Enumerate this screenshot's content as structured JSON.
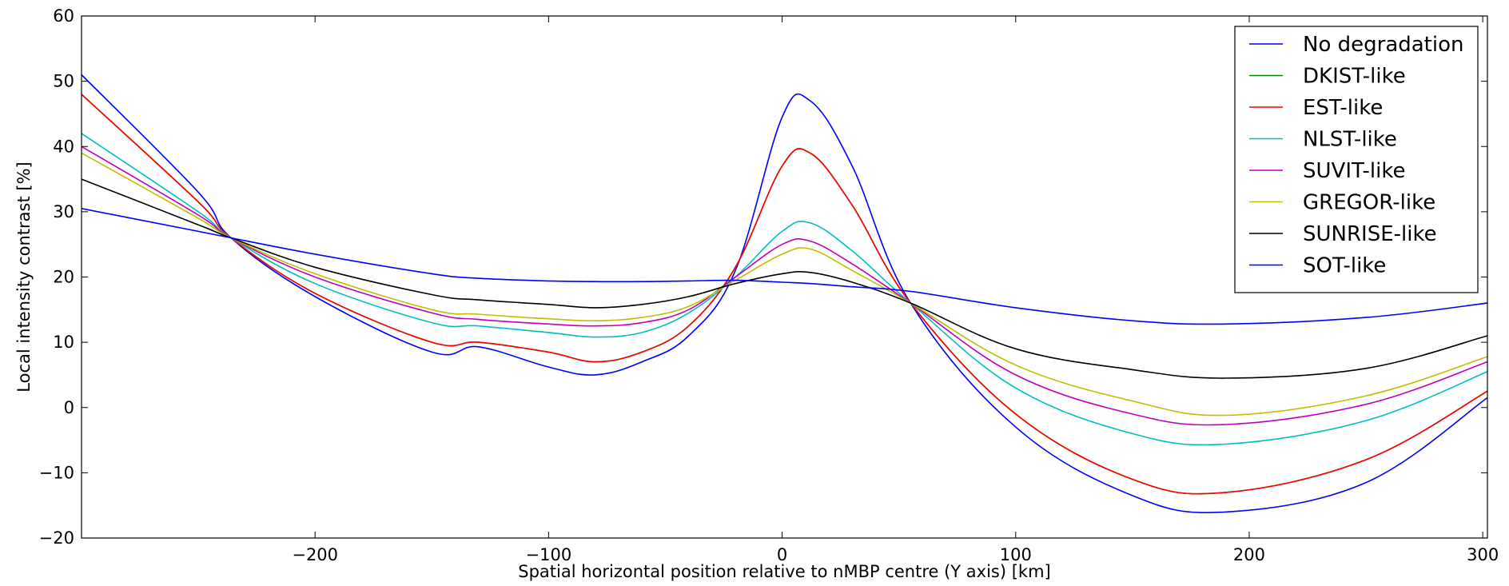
{
  "chart_data": {
    "type": "line",
    "title": "",
    "xlabel": "Spatial horizontal position relative to nMBP centre (Y axis) [km]",
    "ylabel": "Local intensity contrast [%]",
    "xlim": [
      -300,
      302
    ],
    "ylim": [
      -20,
      60
    ],
    "xticks": [
      -200,
      -100,
      0,
      100,
      200,
      300
    ],
    "xtick_labels": [
      "−200",
      "−100",
      "0",
      "100",
      "200",
      "300"
    ],
    "yticks": [
      -20,
      -10,
      0,
      10,
      20,
      30,
      40,
      50,
      60
    ],
    "ytick_labels": [
      "−20",
      "−10",
      "0",
      "10",
      "20",
      "30",
      "40",
      "50",
      "60"
    ],
    "legend_position": "top-right",
    "x": [
      -300,
      -250,
      -236,
      -200,
      -150,
      -130,
      -100,
      -80,
      -60,
      -40,
      -20,
      0,
      12,
      30,
      55,
      100,
      150,
      190,
      250,
      302
    ],
    "series": [
      {
        "name": "No degradation",
        "color": "#0000ff",
        "values": [
          51,
          33,
          26,
          17,
          8.5,
          9.3,
          6.2,
          5.0,
          7.0,
          11,
          21,
          44.5,
          47,
          37,
          16,
          -3,
          -13.5,
          -16,
          -11.5,
          1.5
        ]
      },
      {
        "name": "DKIST-like",
        "color": "#008000",
        "values": [
          48,
          31.5,
          26,
          17.5,
          10,
          10,
          8.5,
          7.0,
          8.5,
          12.5,
          21.5,
          37,
          39,
          31,
          16,
          -1,
          -11,
          -13,
          -8,
          2.5
        ]
      },
      {
        "name": "EST-like",
        "color": "#ff0000",
        "values": [
          48,
          31.5,
          26,
          17.5,
          10,
          10,
          8.5,
          7.0,
          8.5,
          12.5,
          21.5,
          37,
          39,
          31,
          16,
          -1,
          -11,
          -13,
          -8,
          2.5
        ]
      },
      {
        "name": "NLST-like",
        "color": "#00bfbf",
        "values": [
          42,
          30,
          26,
          19,
          13,
          12.5,
          11.5,
          10.8,
          11.5,
          14.5,
          20,
          27,
          28.3,
          24,
          16,
          3,
          -4,
          -5.6,
          -2,
          5.5
        ]
      },
      {
        "name": "SUVIT-like",
        "color": "#bf00bf",
        "values": [
          40,
          29.5,
          26,
          20,
          14.5,
          13.5,
          12.8,
          12.5,
          13,
          15,
          20,
          25,
          25.5,
          22,
          16,
          5,
          -1,
          -2.6,
          0.5,
          7
        ]
      },
      {
        "name": "GREGOR-like",
        "color": "#bfbf00",
        "values": [
          39,
          29,
          26,
          20.5,
          15,
          14.3,
          13.6,
          13.3,
          13.8,
          15.5,
          19.5,
          23.5,
          24.3,
          21,
          16,
          6.5,
          1,
          -1.2,
          1.8,
          7.8
        ]
      },
      {
        "name": "SUNRISE-like",
        "color": "#000000",
        "values": [
          35,
          28,
          26,
          21.5,
          17.3,
          16.5,
          15.8,
          15.3,
          15.8,
          17,
          19,
          20.5,
          20.7,
          19.2,
          16,
          9,
          5.8,
          4.5,
          6,
          11
        ]
      },
      {
        "name": "SOT-like",
        "color": "#0000ff",
        "values": [
          30.5,
          27,
          26,
          23.5,
          20.5,
          19.8,
          19.4,
          19.3,
          19.3,
          19.4,
          19.5,
          19.2,
          19,
          18.5,
          17.8,
          15.3,
          13.3,
          12.8,
          13.8,
          16
        ]
      }
    ]
  }
}
